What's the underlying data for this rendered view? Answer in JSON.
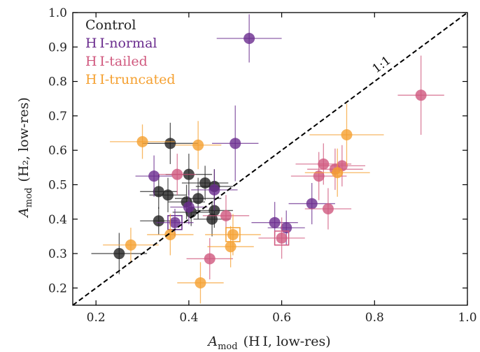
{
  "chart_data": {
    "type": "scatter",
    "title": "",
    "xlabel": {
      "symbol": "A",
      "sub": "mod",
      "rest": "(H I,  low-res)"
    },
    "ylabel": {
      "symbol": "A",
      "sub": "mod",
      "rest": "(H₂,  low-res)"
    },
    "xlim": [
      0.15,
      1.0
    ],
    "ylim": [
      0.15,
      1.0
    ],
    "x_ticks": [
      0.2,
      0.4,
      0.6,
      0.8,
      1.0
    ],
    "y_ticks": [
      0.2,
      0.3,
      0.4,
      0.5,
      0.6,
      0.7,
      0.8,
      0.9,
      1.0
    ],
    "x_tick_labels": [
      "0.2",
      "0.4",
      "0.6",
      "0.8",
      "1.0"
    ],
    "y_tick_labels": [
      "0.2",
      "0.3",
      "0.4",
      "0.5",
      "0.6",
      "0.7",
      "0.8",
      "0.9",
      "1.0"
    ],
    "grid": false,
    "legend_position": "top-left",
    "reference_line": {
      "label": "1:1",
      "style": "dashed",
      "color": "#000000"
    },
    "series": [
      {
        "name": "Control",
        "color": "#222222",
        "points": [
          {
            "x": 0.25,
            "y": 0.3,
            "xerr": 0.06,
            "yerr": 0.06
          },
          {
            "x": 0.335,
            "y": 0.395,
            "xerr": 0.04,
            "yerr": 0.04
          },
          {
            "x": 0.335,
            "y": 0.48,
            "xerr": 0.04,
            "yerr": 0.05
          },
          {
            "x": 0.355,
            "y": 0.47,
            "xerr": 0.04,
            "yerr": 0.05
          },
          {
            "x": 0.36,
            "y": 0.62,
            "xerr": 0.06,
            "yerr": 0.06
          },
          {
            "x": 0.395,
            "y": 0.45,
            "xerr": 0.04,
            "yerr": 0.05
          },
          {
            "x": 0.4,
            "y": 0.53,
            "xerr": 0.05,
            "yerr": 0.06
          },
          {
            "x": 0.405,
            "y": 0.42,
            "xerr": 0.04,
            "yerr": 0.04
          },
          {
            "x": 0.42,
            "y": 0.46,
            "xerr": 0.05,
            "yerr": 0.06
          },
          {
            "x": 0.435,
            "y": 0.505,
            "xerr": 0.05,
            "yerr": 0.05
          },
          {
            "x": 0.45,
            "y": 0.4,
            "xerr": 0.04,
            "yerr": 0.05
          },
          {
            "x": 0.455,
            "y": 0.425,
            "xerr": 0.04,
            "yerr": 0.05
          },
          {
            "x": 0.455,
            "y": 0.495,
            "xerr": 0.04,
            "yerr": 0.05
          }
        ]
      },
      {
        "name": "H I-normal",
        "color": "#6a2c8e",
        "points": [
          {
            "x": 0.325,
            "y": 0.525,
            "xerr": 0.04,
            "yerr": 0.06
          },
          {
            "x": 0.37,
            "y": 0.39,
            "xerr": 0.04,
            "yerr": 0.04,
            "boxed": true
          },
          {
            "x": 0.4,
            "y": 0.435,
            "xerr": 0.04,
            "yerr": 0.05
          },
          {
            "x": 0.455,
            "y": 0.485,
            "xerr": 0.05,
            "yerr": 0.06
          },
          {
            "x": 0.5,
            "y": 0.62,
            "xerr": 0.05,
            "yerr": 0.11
          },
          {
            "x": 0.53,
            "y": 0.925,
            "xerr": 0.07,
            "yerr": 0.07
          },
          {
            "x": 0.585,
            "y": 0.39,
            "xerr": 0.05,
            "yerr": 0.06
          },
          {
            "x": 0.61,
            "y": 0.375,
            "xerr": 0.04,
            "yerr": 0.05
          },
          {
            "x": 0.665,
            "y": 0.445,
            "xerr": 0.05,
            "yerr": 0.06
          }
        ]
      },
      {
        "name": "H I-tailed",
        "color": "#d0587e",
        "points": [
          {
            "x": 0.375,
            "y": 0.53,
            "xerr": 0.04,
            "yerr": 0.06
          },
          {
            "x": 0.445,
            "y": 0.285,
            "xerr": 0.05,
            "yerr": 0.06
          },
          {
            "x": 0.48,
            "y": 0.41,
            "xerr": 0.05,
            "yerr": 0.06
          },
          {
            "x": 0.6,
            "y": 0.345,
            "xerr": 0.05,
            "yerr": 0.06,
            "boxed": true
          },
          {
            "x": 0.68,
            "y": 0.525,
            "xerr": 0.06,
            "yerr": 0.07
          },
          {
            "x": 0.69,
            "y": 0.56,
            "xerr": 0.06,
            "yerr": 0.06
          },
          {
            "x": 0.7,
            "y": 0.43,
            "xerr": 0.05,
            "yerr": 0.06
          },
          {
            "x": 0.715,
            "y": 0.545,
            "xerr": 0.06,
            "yerr": 0.06
          },
          {
            "x": 0.73,
            "y": 0.555,
            "xerr": 0.05,
            "yerr": 0.06
          },
          {
            "x": 0.9,
            "y": 0.76,
            "xerr": 0.05,
            "yerr": 0.115
          }
        ]
      },
      {
        "name": "H I-truncated",
        "color": "#f5a030",
        "points": [
          {
            "x": 0.275,
            "y": 0.325,
            "xerr": 0.06,
            "yerr": 0.05
          },
          {
            "x": 0.3,
            "y": 0.625,
            "xerr": 0.07,
            "yerr": 0.05
          },
          {
            "x": 0.36,
            "y": 0.355,
            "xerr": 0.05,
            "yerr": 0.06
          },
          {
            "x": 0.42,
            "y": 0.615,
            "xerr": 0.05,
            "yerr": 0.07
          },
          {
            "x": 0.425,
            "y": 0.215,
            "xerr": 0.05,
            "yerr": 0.06
          },
          {
            "x": 0.49,
            "y": 0.32,
            "xerr": 0.05,
            "yerr": 0.06
          },
          {
            "x": 0.495,
            "y": 0.355,
            "xerr": 0.06,
            "yerr": 0.06,
            "boxed": true
          },
          {
            "x": 0.72,
            "y": 0.535,
            "xerr": 0.07,
            "yerr": 0.07
          },
          {
            "x": 0.74,
            "y": 0.645,
            "xerr": 0.08,
            "yerr": 0.09
          }
        ]
      }
    ]
  }
}
